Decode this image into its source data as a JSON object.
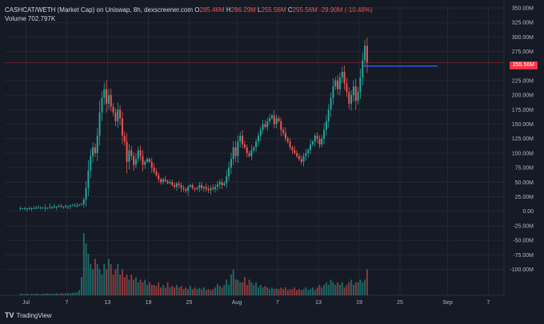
{
  "header": {
    "symbol": "CASHCAT/WETH (Market Cap) on Uniswap, 8h, dexscreener.com",
    "open_label": "O",
    "open": "285.46M",
    "high_label": "H",
    "high": "286.29M",
    "low_label": "L",
    "low": "255.56M",
    "close_label": "C",
    "close": "255.56M",
    "change": "-29.90M (-10.48%)",
    "volume_label": "Volume",
    "volume": "702.797K"
  },
  "price_tag": "255.56M",
  "footer": {
    "logo": "TV",
    "brand": "TradingView"
  },
  "colors": {
    "up": "#26a69a",
    "down": "#ef5350",
    "background": "#161a25",
    "line": "#2962ff",
    "price_line": "#f23645"
  },
  "chart_data": {
    "type": "candlestick",
    "ylim": [
      -120,
      350
    ],
    "y_ticks": [
      {
        "v": 350,
        "l": "350.00M"
      },
      {
        "v": 325,
        "l": "325.00M"
      },
      {
        "v": 300,
        "l": "300.00M"
      },
      {
        "v": 275,
        "l": "275.00M"
      },
      {
        "v": 225,
        "l": "225.00M"
      },
      {
        "v": 200,
        "l": "200.00M"
      },
      {
        "v": 175,
        "l": "175.00M"
      },
      {
        "v": 150,
        "l": "150.00M"
      },
      {
        "v": 125,
        "l": "125.00M"
      },
      {
        "v": 100,
        "l": "100.00M"
      },
      {
        "v": 75,
        "l": "75.00M"
      },
      {
        "v": 50,
        "l": "50.00M"
      },
      {
        "v": 25,
        "l": "25.00M"
      },
      {
        "v": 0,
        "l": "0.00"
      },
      {
        "v": -25,
        "l": "-25.00M"
      },
      {
        "v": -50,
        "l": "-50.00M"
      },
      {
        "v": -75,
        "l": "-75.00M"
      },
      {
        "v": -100,
        "l": "-100.00M"
      }
    ],
    "x_ticks": [
      {
        "d": 1,
        "l": "Jul"
      },
      {
        "d": 7,
        "l": "7"
      },
      {
        "d": 13,
        "l": "13"
      },
      {
        "d": 19,
        "l": "19"
      },
      {
        "d": 25,
        "l": "25"
      },
      {
        "d": 32,
        "l": "Aug"
      },
      {
        "d": 38,
        "l": "7"
      },
      {
        "d": 44,
        "l": "13"
      },
      {
        "d": 50,
        "l": "19"
      },
      {
        "d": 56,
        "l": "25"
      },
      {
        "d": 63,
        "l": "Sep"
      },
      {
        "d": 69,
        "l": "7"
      }
    ],
    "x_start_day": 0,
    "candles_per_day": 3,
    "closes": [
      5,
      5,
      5,
      5,
      5,
      5,
      5,
      6,
      6,
      6,
      6,
      6,
      6,
      7,
      7,
      8,
      8,
      9,
      8,
      8,
      9,
      9,
      10,
      10,
      10,
      10,
      11,
      12,
      20,
      40,
      70,
      95,
      110,
      100,
      130,
      170,
      195,
      210,
      185,
      200,
      180,
      170,
      155,
      175,
      160,
      130,
      120,
      85,
      105,
      95,
      80,
      90,
      105,
      95,
      80,
      85,
      90,
      85,
      75,
      68,
      62,
      55,
      50,
      55,
      52,
      48,
      50,
      45,
      42,
      48,
      45,
      40,
      38,
      35,
      42,
      45,
      40,
      38,
      40,
      45,
      40,
      42,
      38,
      36,
      40,
      38,
      42,
      46,
      50,
      45,
      48,
      60,
      75,
      90,
      110,
      95,
      120,
      130,
      115,
      110,
      100,
      95,
      105,
      110,
      120,
      130,
      140,
      150,
      145,
      155,
      160,
      165,
      150,
      160,
      155,
      140,
      135,
      125,
      120,
      110,
      105,
      100,
      95,
      90,
      85,
      95,
      100,
      105,
      115,
      120,
      130,
      125,
      115,
      125,
      140,
      155,
      175,
      195,
      215,
      225,
      210,
      230,
      240,
      220,
      205,
      185,
      200,
      215,
      190,
      205,
      230,
      260,
      285,
      255.56
    ],
    "volume": [
      0.3,
      0.3,
      0.2,
      0.3,
      0.2,
      0.3,
      0.2,
      0.3,
      0.3,
      0.2,
      0.3,
      0.3,
      0.4,
      0.3,
      0.3,
      0.3,
      0.4,
      0.3,
      0.4,
      0.3,
      0.4,
      0.4,
      0.4,
      0.5,
      0.5,
      0.6,
      1.0,
      3.5,
      12,
      10,
      8,
      6,
      5,
      7,
      6,
      5,
      4,
      6,
      5,
      7,
      6,
      4,
      5,
      6,
      4,
      5,
      3.5,
      4,
      3,
      4,
      3,
      3.5,
      2.5,
      3,
      2.5,
      3,
      2,
      2.5,
      2,
      2,
      1.8,
      2.5,
      1.5,
      2,
      1.5,
      2.5,
      1.5,
      1.8,
      1.5,
      2,
      1.5,
      1.8,
      1.2,
      1.5,
      1.2,
      1.8,
      1.2,
      1.5,
      1.2,
      1.4,
      1.2,
      1.5,
      1,
      1.2,
      1,
      1.2,
      1.5,
      2.2,
      1.8,
      1.5,
      2,
      3,
      2,
      4,
      5,
      3,
      3,
      2.5,
      2.5,
      3.5,
      2,
      3,
      2.5,
      2,
      2.5,
      1.5,
      2,
      1.5,
      1.8,
      1.5,
      1.2,
      1.5,
      1.2,
      1.3,
      1.2,
      1.5,
      1.2,
      1.5,
      1,
      1.2,
      1.2,
      1.5,
      1,
      1.2,
      1,
      1.2,
      1.5,
      1,
      1.2,
      1.5,
      1,
      1.5,
      2,
      1.5,
      2,
      2.5,
      2,
      3,
      2.5,
      2,
      2.5,
      2,
      2.5,
      1.5,
      2,
      2.5,
      3,
      2,
      2.5,
      2.5,
      3,
      2.5,
      3,
      5
    ]
  }
}
